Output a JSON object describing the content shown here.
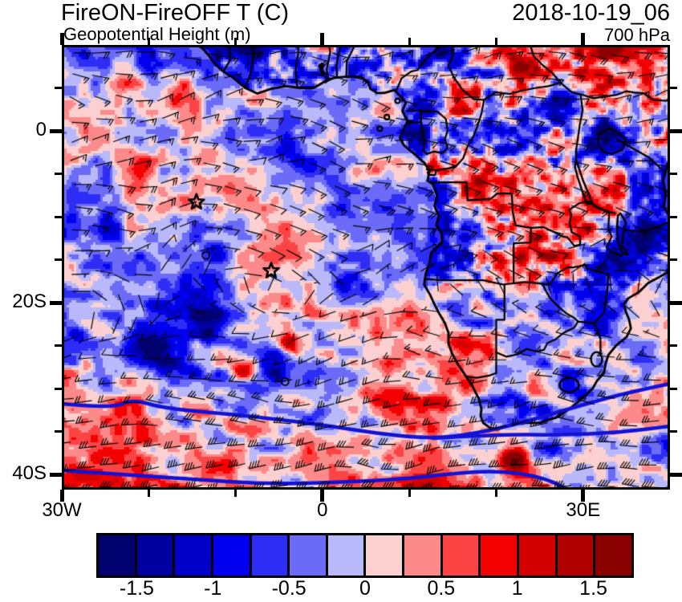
{
  "header": {
    "title": "FireON-FireOFF T (C)",
    "subtitle": "Geopotential Height (m)",
    "date": "2018-10-19_06",
    "level": "700 hPa"
  },
  "axes": {
    "lon_range": [
      -30,
      40
    ],
    "lat_range": [
      -41.8,
      10
    ],
    "lat_major": [
      {
        "label": "0",
        "lat": 0
      },
      {
        "label": "20S",
        "lat": -20
      },
      {
        "label": "40S",
        "lat": -40
      }
    ],
    "lat_minor": [
      5,
      -5,
      -10,
      -15,
      -25,
      -30,
      -35
    ],
    "lon_major": [
      {
        "label": "30W",
        "lon": -30
      },
      {
        "label": "0",
        "lon": 0
      },
      {
        "label": "30E",
        "lon": 30
      }
    ],
    "lon_minor": [
      -20,
      -10,
      10,
      20
    ]
  },
  "colorbar": {
    "units": "C",
    "n_segments": 14,
    "levels": [
      -1.75,
      -1.5,
      -1.25,
      -1,
      -0.75,
      -0.5,
      -0.25,
      0,
      0.25,
      0.5,
      0.75,
      1,
      1.25,
      1.5,
      1.75
    ],
    "tick_labels": [
      "-1.5",
      "-1",
      "-0.5",
      "0",
      "0.5",
      "1",
      "1.5"
    ],
    "colors": [
      "#00006e",
      "#0000a0",
      "#0000c8",
      "#0000ee",
      "#2d2df5",
      "#6b6bf7",
      "#b8b8fa",
      "#fcd0d0",
      "#fc8a8a",
      "#fc4444",
      "#f40000",
      "#d40000",
      "#b00000",
      "#8a0000"
    ]
  },
  "map": {
    "contour_color": "#1212d6",
    "coast_color": "#000000",
    "markers": {
      "stars": [
        {
          "lon": -14.5,
          "lat": -8.3
        },
        {
          "lon": -5.9,
          "lat": -16.3
        }
      ],
      "circles": [
        {
          "lon": -13.4,
          "lat": -14.5
        },
        {
          "lon": -4.3,
          "lat": -29.2
        }
      ],
      "islands": [
        {
          "lon": 8.65,
          "lat": 3.5
        },
        {
          "lon": 7.42,
          "lat": 1.6
        },
        {
          "lon": 6.6,
          "lat": 0.25
        }
      ]
    }
  },
  "chart_data": {
    "type": "heatmap",
    "title": "FireON-FireOFF T (C)",
    "subtitle": "Geopotential Height (m)",
    "timestamp": "2018-10-19_06",
    "pressure_level": "700 hPa",
    "xlabel_ticks": [
      "30W",
      "0",
      "30E"
    ],
    "ylabel_ticks": [
      "0",
      "20S",
      "40S"
    ],
    "lon_range": [
      -30,
      40
    ],
    "lat_range": [
      -41.8,
      10
    ],
    "colorbar_levels": [
      -1.75,
      -1.5,
      -1.25,
      -1,
      -0.75,
      -0.5,
      -0.25,
      0,
      0.25,
      0.5,
      0.75,
      1,
      1.25,
      1.5,
      1.75
    ],
    "colorbar_tick_labels": [
      "-1.5",
      "-1",
      "-0.5",
      "0",
      "0.5",
      "1",
      "1.5"
    ],
    "legend_position": "bottom",
    "description": "Temperature difference (FireON minus FireOFF, C) shaded over southern Africa and South Atlantic; 700 hPa wind barbs; thick blue geopotential height contours; two star markers in the South Atlantic"
  }
}
